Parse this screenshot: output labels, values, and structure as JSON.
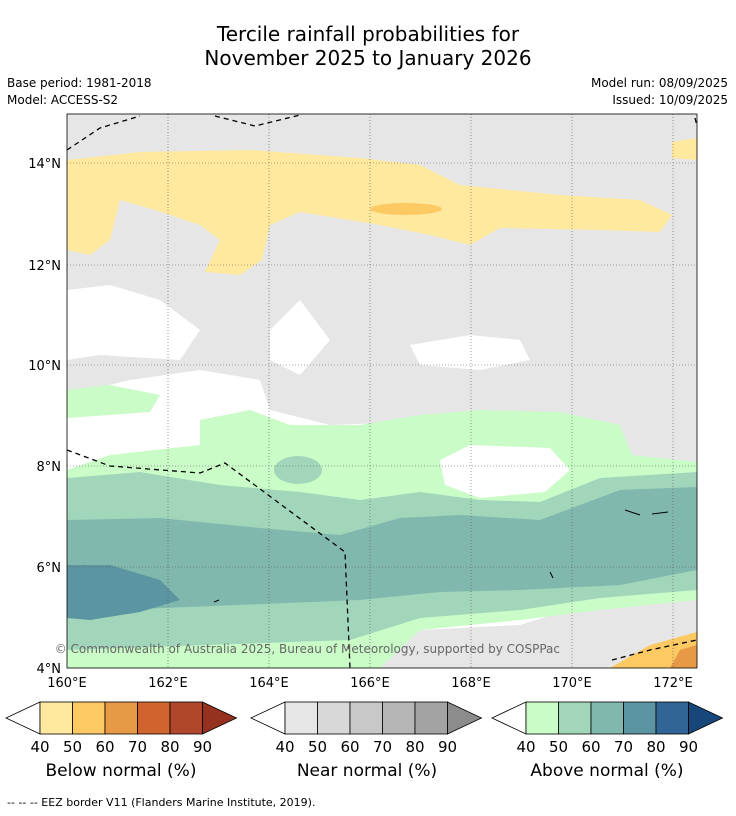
{
  "title_line1": "Tercile rainfall probabilities for",
  "title_line2": "November 2025 to January 2026",
  "base_period": "Base period: 1981-2018",
  "model": "Model: ACCESS-S2",
  "model_run": "Model run: 08/09/2025",
  "issued": "Issued: 10/09/2025",
  "copyright": "© Commonwealth of Australia 2025, Bureau of Meteorology, supported by COSPPac",
  "lat_labels": [
    "14°N",
    "12°N",
    "10°N",
    "8°N",
    "6°N",
    "4°N"
  ],
  "lon_labels": [
    "160°E",
    "162°E",
    "164°E",
    "166°E",
    "168°E",
    "170°E",
    "172°E"
  ],
  "legends": [
    {
      "title": "Below normal (%)",
      "ticks": [
        "40",
        "50",
        "60",
        "70",
        "80",
        "90"
      ],
      "colors": [
        "#fee99e",
        "#fcc963",
        "#e89945",
        "#d1632f",
        "#b0472a",
        "#95321f"
      ]
    },
    {
      "title": "Near normal (%)",
      "ticks": [
        "40",
        "50",
        "60",
        "70",
        "80",
        "90"
      ],
      "colors": [
        "#e6e6e6",
        "#d8d8d8",
        "#c8c8c8",
        "#b6b6b6",
        "#a3a3a3",
        "#8c8c8c"
      ]
    },
    {
      "title": "Above normal (%)",
      "ticks": [
        "40",
        "50",
        "60",
        "70",
        "80",
        "90"
      ],
      "colors": [
        "#c9fcc7",
        "#a2d6bb",
        "#80b8ad",
        "#5c95a2",
        "#306595",
        "#17477a"
      ]
    }
  ],
  "footnote": "--  --  -- EEZ border V11 (Flanders Marine Institute, 2019)."
}
